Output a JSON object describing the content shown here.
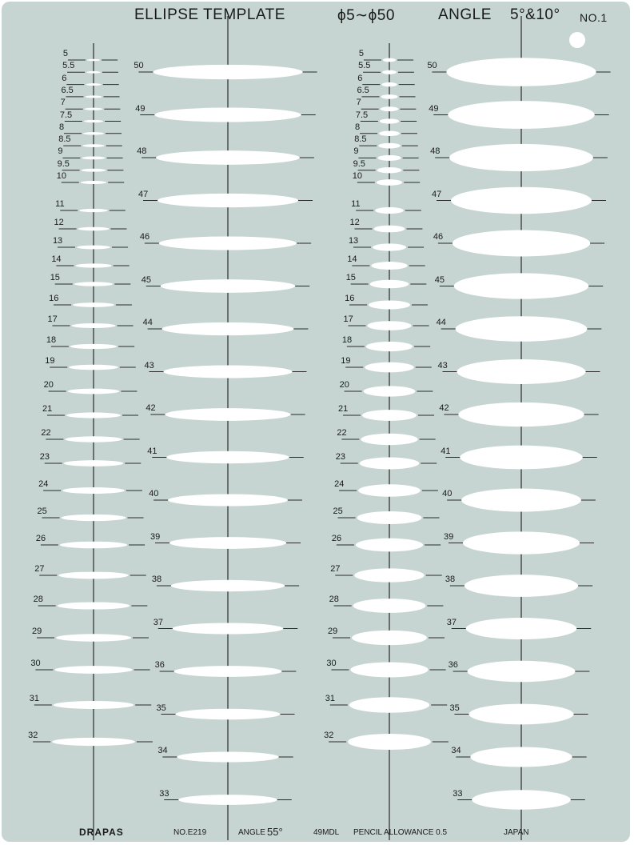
{
  "header": {
    "title": "ELLIPSE  TEMPLATE",
    "range": "ϕ5∼ϕ50",
    "angle_label": "ANGLE",
    "angles": "5°&10°",
    "number": "NO.1"
  },
  "footer": {
    "brand": "DRAPAS",
    "model": "NO.E219",
    "angle_label": "ANGLE",
    "angle_value": "55°",
    "mdl": "49MDL",
    "pencil": "PENCIL  ALLOWANCE  0.5",
    "origin": "JAPAN"
  },
  "templates": [
    {
      "angle": 5,
      "small_sizes": [
        "5",
        "5.5",
        "6",
        "6.5",
        "7",
        "7.5",
        "8",
        "8.5",
        "9",
        "9.5",
        "10",
        "11",
        "12",
        "13",
        "14",
        "15",
        "16",
        "17",
        "18",
        "19",
        "20",
        "21",
        "22",
        "23",
        "24",
        "25",
        "26",
        "27",
        "28",
        "29",
        "30",
        "31",
        "32"
      ],
      "large_sizes": [
        "50",
        "49",
        "48",
        "47",
        "46",
        "45",
        "44",
        "43",
        "42",
        "41",
        "40",
        "39",
        "38",
        "37",
        "36",
        "35",
        "34",
        "33"
      ]
    },
    {
      "angle": 10,
      "small_sizes": [
        "5",
        "5.5",
        "6",
        "6.5",
        "7",
        "7.5",
        "8",
        "8.5",
        "9",
        "9.5",
        "10",
        "11",
        "12",
        "13",
        "14",
        "15",
        "16",
        "17",
        "18",
        "19",
        "20",
        "21",
        "22",
        "23",
        "24",
        "25",
        "26",
        "27",
        "28",
        "29",
        "30",
        "31",
        "32"
      ],
      "large_sizes": [
        "50",
        "49",
        "48",
        "47",
        "46",
        "45",
        "44",
        "43",
        "42",
        "41",
        "40",
        "39",
        "38",
        "37",
        "36",
        "35",
        "34",
        "33"
      ]
    }
  ]
}
